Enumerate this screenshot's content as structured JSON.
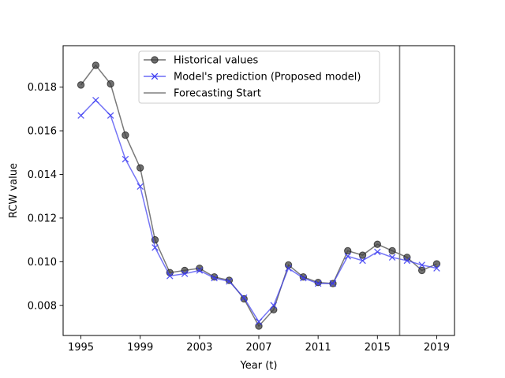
{
  "chart_data": {
    "type": "line",
    "title": "",
    "xlabel": "Year (t)",
    "ylabel": "RCW value",
    "xlim": [
      1993.8,
      2020.2
    ],
    "ylim": [
      0.00662,
      0.0199
    ],
    "x_ticks": [
      1995,
      1999,
      2003,
      2007,
      2011,
      2015,
      2019
    ],
    "y_ticks": [
      0.008,
      0.01,
      0.012,
      0.014,
      0.016,
      0.018
    ],
    "x_tick_labels": [
      "1995",
      "1999",
      "2003",
      "2007",
      "2011",
      "2015",
      "2019"
    ],
    "y_tick_labels": [
      "0.008",
      "0.010",
      "0.012",
      "0.014",
      "0.016",
      "0.018"
    ],
    "grid": false,
    "legend_position": "top-center",
    "forecast_start_x": 2016.5,
    "x": [
      1995,
      1996,
      1997,
      1998,
      1999,
      2000,
      2001,
      2002,
      2003,
      2004,
      2005,
      2006,
      2007,
      2008,
      2009,
      2010,
      2011,
      2012,
      2013,
      2014,
      2015,
      2016,
      2017,
      2018,
      2019
    ],
    "series": [
      {
        "name": "Historical values",
        "color": "#404040",
        "marker": "circle",
        "values": [
          0.0181,
          0.019,
          0.01815,
          0.0158,
          0.0143,
          0.011,
          0.0095,
          0.0096,
          0.0097,
          0.0093,
          0.00915,
          0.0083,
          0.00705,
          0.0078,
          0.00985,
          0.0093,
          0.00905,
          0.009,
          0.0105,
          0.0103,
          0.0108,
          0.0105,
          0.0102,
          0.0096,
          0.0099
        ]
      },
      {
        "name": "Model's prediction (Proposed model)",
        "color": "#3b3bf2",
        "marker": "x",
        "values": [
          0.0167,
          0.0174,
          0.0167,
          0.0147,
          0.01345,
          0.01065,
          0.00935,
          0.00945,
          0.0096,
          0.00925,
          0.0091,
          0.00835,
          0.00725,
          0.008,
          0.0097,
          0.00925,
          0.009,
          0.009,
          0.01025,
          0.01005,
          0.01045,
          0.0102,
          0.01005,
          0.00985,
          0.0097
        ]
      }
    ],
    "reference_lines": [
      {
        "name": "Forecasting Start",
        "color": "#808080",
        "x": 2016.5
      }
    ]
  }
}
